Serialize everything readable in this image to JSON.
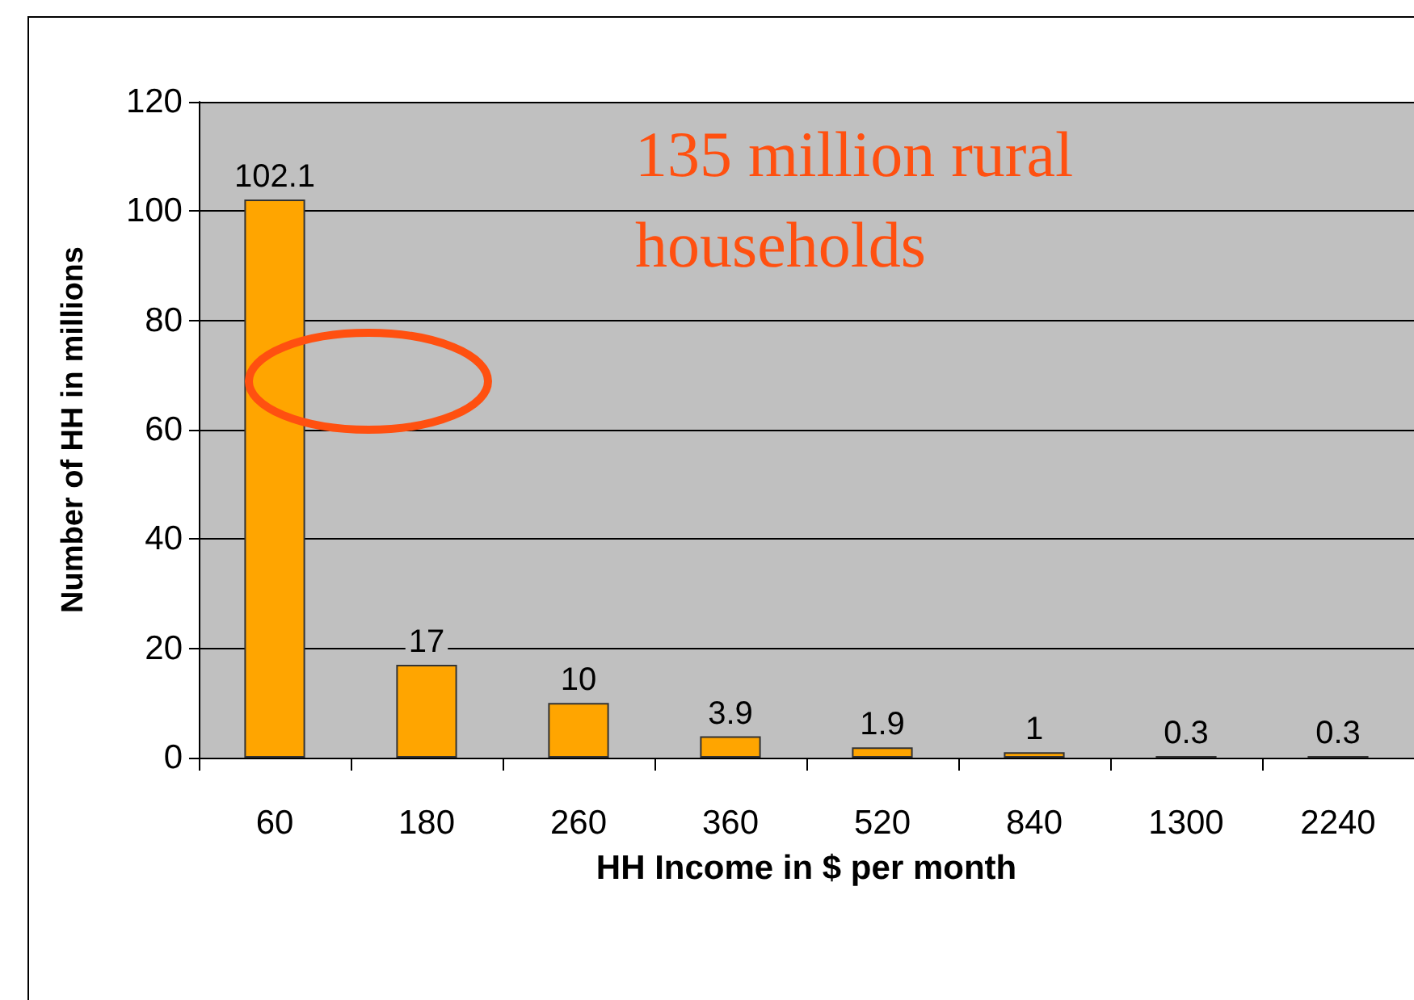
{
  "chart_data": {
    "type": "bar",
    "categories": [
      "60",
      "180",
      "260",
      "360",
      "520",
      "840",
      "1300",
      "2240"
    ],
    "values": [
      102.1,
      17,
      10,
      3.9,
      1.9,
      1,
      0.3,
      0.3
    ],
    "color": "#ffa500",
    "xlabel": "HH Income in $ per month",
    "ylabel": "Number of HH in millions",
    "ylim": [
      0,
      120
    ],
    "yticks": [
      0,
      20,
      40,
      60,
      80,
      100,
      120
    ],
    "grid": "y",
    "data_labels": true,
    "annotations": [
      "135 million rural households"
    ]
  }
}
